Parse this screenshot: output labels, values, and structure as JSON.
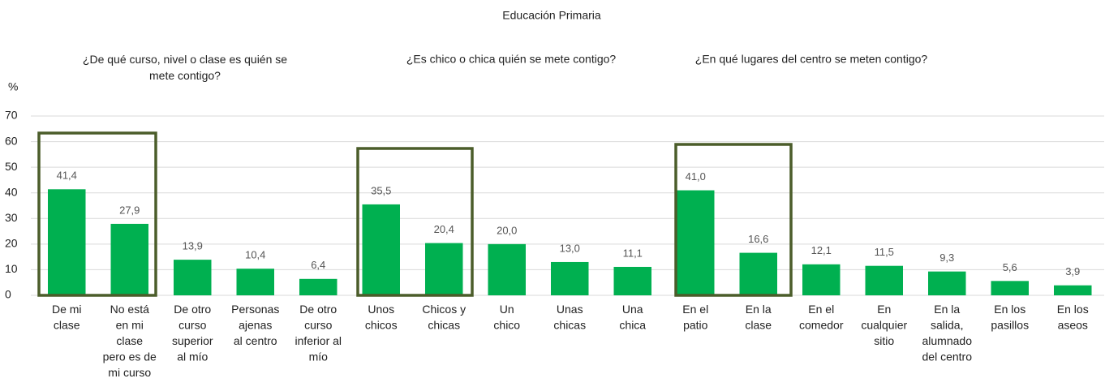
{
  "chart_data": {
    "type": "bar",
    "title": "Educación Primaria",
    "y_label": "%",
    "annotations": [
      "¿De qué curso, nivel o clase es quién se\nmete contigo?",
      "¿Es chico o chica quién se mete contigo?",
      "¿En qué lugares del centro se meten contigo?"
    ],
    "categories": [
      "De mi\nclase",
      "No está\nen mi\nclase\npero es de\nmi curso",
      "De otro\ncurso\nsuperior\nal mío",
      "Personas\najenas\nal centro",
      "De otro\ncurso\ninferior al\nmío",
      "Unos\nchicos",
      "Chicos y\nchicas",
      "Un\nchico",
      "Unas\nchicas",
      "Una\nchica",
      "En el\npatio",
      "En la\nclase",
      "En el\ncomedor",
      "En\ncualquier\nsitio",
      "En la\nsalida,\nalumnado\ndel centro",
      "En los\npasillos",
      "En los\naseos"
    ],
    "values": [
      41.4,
      27.9,
      13.9,
      10.4,
      6.4,
      35.5,
      20.4,
      20.0,
      13.0,
      11.1,
      41.0,
      16.6,
      12.1,
      11.5,
      9.3,
      5.6,
      3.9
    ],
    "value_labels": [
      "41,4",
      "27,9",
      "13,9",
      "10,4",
      "6,4",
      "35,5",
      "20,4",
      "20,0",
      "13,0",
      "11,1",
      "41,0",
      "16,6",
      "12,1",
      "11,5",
      "9,3",
      "5,6",
      "3,9"
    ],
    "color": "#00b050",
    "ylim": [
      0,
      70
    ],
    "yticks": [
      0,
      10,
      20,
      30,
      40,
      50,
      60,
      70
    ],
    "grid": true
  }
}
